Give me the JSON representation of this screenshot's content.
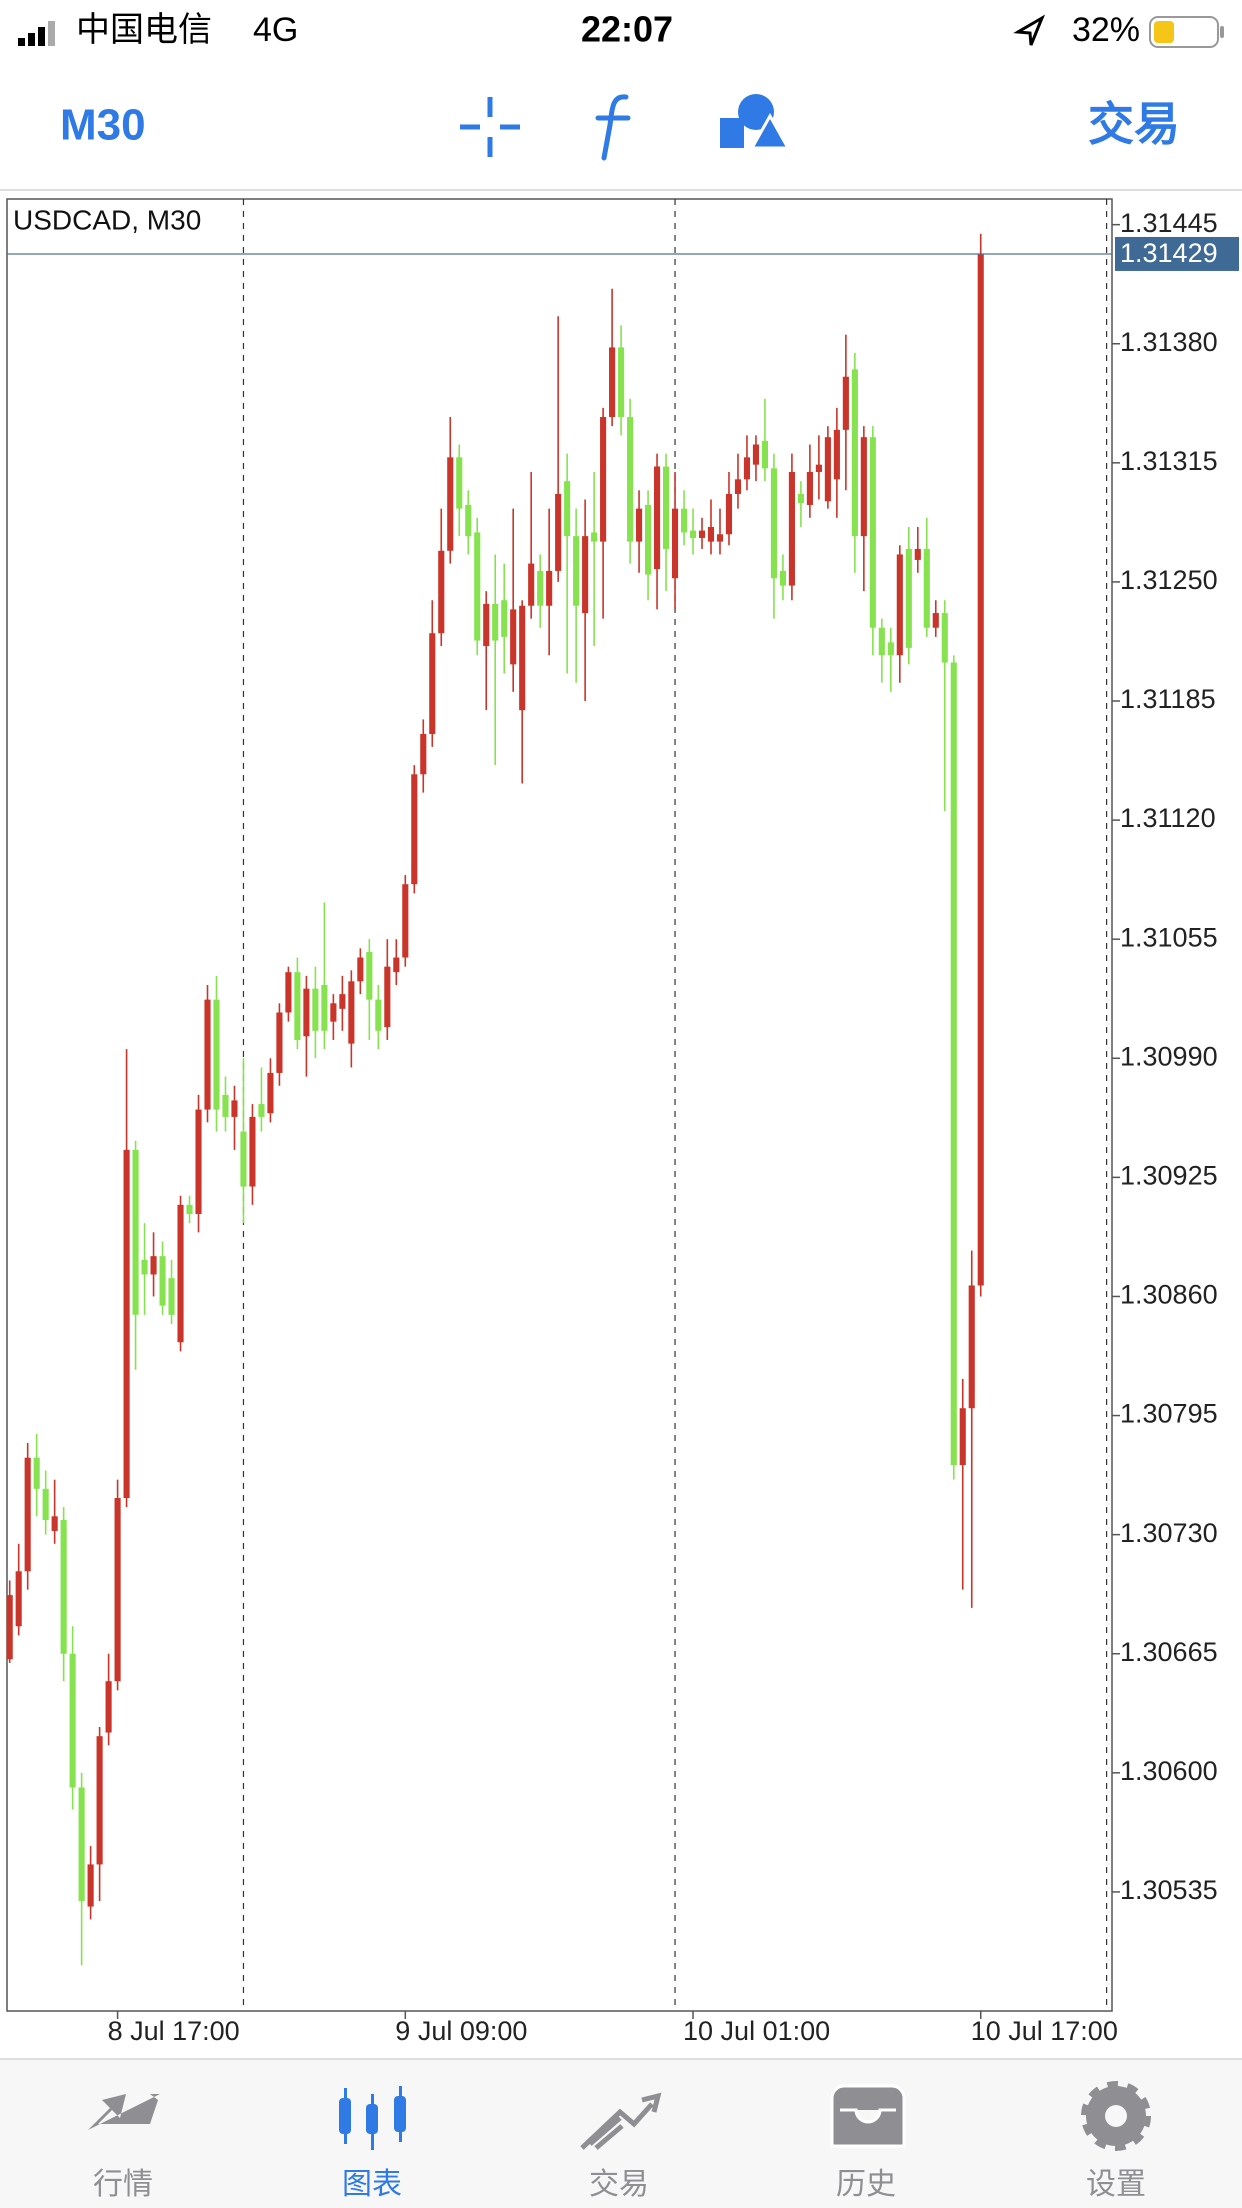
{
  "status_bar": {
    "carrier": "中国电信",
    "network": "4G",
    "time": "22:07",
    "battery": "32%"
  },
  "toolbar": {
    "timeframe": "M30",
    "trade": "交易"
  },
  "chart_data": {
    "type": "candlestick",
    "title": "USDCAD, M30",
    "up_color": "#c9352a",
    "down_color": "#86e34f",
    "open": [
      1.30662,
      1.3068,
      1.3071,
      1.30772,
      1.30755,
      1.30732,
      1.30738,
      1.30665,
      1.30592,
      1.30527,
      1.3055,
      1.30622,
      1.3065,
      1.3075,
      1.3094,
      1.3088,
      1.30872,
      1.30882,
      1.3087,
      1.30835,
      1.3091,
      1.30905,
      1.30962,
      1.31022,
      1.3097,
      1.30958,
      1.3095,
      1.3092,
      1.30965,
      1.3096,
      1.30982,
      1.31015,
      1.31037,
      1.31002,
      1.31028,
      1.3103,
      1.3101,
      1.31017,
      1.30998,
      1.31032,
      1.31048,
      1.31022,
      1.31007,
      1.31037,
      1.31045,
      1.31085,
      1.31145,
      1.31167,
      1.31222,
      1.31267,
      1.31318,
      1.31292,
      1.31277,
      1.31215,
      1.31238,
      1.3124,
      1.31205,
      1.3118,
      1.31237,
      1.31256,
      1.31237,
      1.31256,
      1.31305,
      1.31275,
      1.31233,
      1.31277,
      1.31272,
      1.3134,
      1.31378,
      1.3134,
      1.31272,
      1.31292,
      1.31257,
      1.31313,
      1.31252,
      1.3129,
      1.31278,
      1.31274,
      1.31272,
      1.31272,
      1.31276,
      1.31298,
      1.31306,
      1.31314,
      1.31327,
      1.31312,
      1.31256,
      1.31248,
      1.31298,
      1.31292,
      1.3131,
      1.31294,
      1.31306,
      1.31333,
      1.31366,
      1.31275,
      1.31329,
      1.31225,
      1.31217,
      1.3121,
      1.31268,
      1.31262,
      1.31268,
      1.31225,
      1.31233,
      1.31206,
      1.30768,
      1.30799,
      1.30866
    ],
    "high": [
      1.30705,
      1.30725,
      1.3078,
      1.30785,
      1.30765,
      1.3076,
      1.30745,
      1.3068,
      1.306,
      1.3056,
      1.30625,
      1.30665,
      1.3076,
      1.30995,
      1.30945,
      1.309,
      1.30895,
      1.3089,
      1.3088,
      1.30915,
      1.30915,
      1.3097,
      1.3103,
      1.31035,
      1.3098,
      1.30975,
      1.3099,
      1.30965,
      1.30985,
      1.3099,
      1.3102,
      1.3104,
      1.31045,
      1.31035,
      1.3104,
      1.31075,
      1.31025,
      1.31035,
      1.31038,
      1.3105,
      1.31055,
      1.3103,
      1.31055,
      1.31055,
      1.3109,
      1.3115,
      1.31175,
      1.3124,
      1.3129,
      1.3134,
      1.31325,
      1.313,
      1.31285,
      1.31245,
      1.31265,
      1.3126,
      1.3129,
      1.3124,
      1.3131,
      1.31265,
      1.3129,
      1.31395,
      1.3132,
      1.3129,
      1.31295,
      1.3131,
      1.31345,
      1.3141,
      1.3139,
      1.3135,
      1.313,
      1.313,
      1.3132,
      1.3132,
      1.3131,
      1.313,
      1.3129,
      1.31285,
      1.31295,
      1.3129,
      1.3131,
      1.3132,
      1.3133,
      1.3133,
      1.3135,
      1.3132,
      1.31265,
      1.3132,
      1.31305,
      1.31325,
      1.3133,
      1.31335,
      1.31345,
      1.31385,
      1.31375,
      1.31335,
      1.31335,
      1.3123,
      1.31225,
      1.3127,
      1.3128,
      1.3128,
      1.31285,
      1.3124,
      1.3124,
      1.3121,
      1.30815,
      1.30885,
      1.3144
    ],
    "low": [
      1.3066,
      1.30675,
      1.307,
      1.3074,
      1.3073,
      1.30725,
      1.3065,
      1.3058,
      1.30495,
      1.3052,
      1.3053,
      1.30615,
      1.30645,
      1.30745,
      1.3082,
      1.3085,
      1.3086,
      1.3085,
      1.30845,
      1.3083,
      1.309,
      1.30895,
      1.30955,
      1.3095,
      1.3095,
      1.3094,
      1.309,
      1.3091,
      1.3095,
      1.30955,
      1.30975,
      1.3101,
      1.30995,
      1.3098,
      1.3099,
      1.30995,
      1.31,
      1.31005,
      1.30985,
      1.31025,
      1.31,
      1.30995,
      1.31,
      1.3103,
      1.3104,
      1.3108,
      1.31135,
      1.3116,
      1.31215,
      1.3126,
      1.31275,
      1.31265,
      1.3121,
      1.3118,
      1.3115,
      1.312,
      1.3119,
      1.3114,
      1.3123,
      1.31225,
      1.3121,
      1.3125,
      1.312,
      1.31195,
      1.31185,
      1.31215,
      1.3123,
      1.31335,
      1.3133,
      1.3126,
      1.31255,
      1.3124,
      1.31235,
      1.31245,
      1.31235,
      1.3127,
      1.31265,
      1.31268,
      1.31265,
      1.31265,
      1.3127,
      1.3129,
      1.313,
      1.31305,
      1.31305,
      1.3123,
      1.3124,
      1.3124,
      1.3128,
      1.31285,
      1.31295,
      1.3129,
      1.31285,
      1.313,
      1.31255,
      1.31245,
      1.3121,
      1.31195,
      1.3119,
      1.31195,
      1.31205,
      1.31255,
      1.3122,
      1.3122,
      1.31125,
      1.3076,
      1.307,
      1.3069,
      1.3086
    ],
    "close": [
      1.30697,
      1.3071,
      1.30772,
      1.30755,
      1.30738,
      1.3074,
      1.30665,
      1.30592,
      1.3053,
      1.3055,
      1.3062,
      1.3065,
      1.3075,
      1.3094,
      1.3085,
      1.30872,
      1.30882,
      1.30855,
      1.3085,
      1.3091,
      1.30905,
      1.30962,
      1.31022,
      1.30962,
      1.30958,
      1.30967,
      1.3092,
      1.30958,
      1.30958,
      1.30982,
      1.31015,
      1.31037,
      1.31,
      1.31028,
      1.31005,
      1.31005,
      1.3102,
      1.31025,
      1.31032,
      1.31045,
      1.31022,
      1.31005,
      1.3104,
      1.31045,
      1.31085,
      1.31145,
      1.31167,
      1.31222,
      1.31267,
      1.31318,
      1.3129,
      1.31275,
      1.31218,
      1.31238,
      1.31218,
      1.3122,
      1.31235,
      1.31237,
      1.3126,
      1.31237,
      1.31256,
      1.31298,
      1.31275,
      1.31237,
      1.31275,
      1.31272,
      1.3134,
      1.31378,
      1.3134,
      1.31272,
      1.3129,
      1.31254,
      1.31313,
      1.31268,
      1.3129,
      1.31277,
      1.31274,
      1.31278,
      1.3128,
      1.31276,
      1.31298,
      1.31306,
      1.31318,
      1.31325,
      1.31312,
      1.31252,
      1.31248,
      1.3131,
      1.31293,
      1.3131,
      1.31314,
      1.31329,
      1.31333,
      1.31362,
      1.31275,
      1.31329,
      1.31225,
      1.3121,
      1.3121,
      1.31265,
      1.31214,
      1.31268,
      1.31225,
      1.31233,
      1.31206,
      1.30768,
      1.30799,
      1.30866,
      1.31429
    ],
    "current_price": 1.31429,
    "ylim": [
      1.3047,
      1.31459
    ],
    "yticks": [
      1.31445,
      {
        "value": 1.3138,
        "label": "1.31380"
      },
      1.31315,
      {
        "value": 1.3125,
        "label": "1.31250"
      },
      1.31185,
      {
        "value": 1.3112,
        "label": "1.31120"
      },
      1.31055,
      {
        "value": 1.3099,
        "label": "1.30990"
      },
      1.30925,
      {
        "value": 1.3086,
        "label": "1.30860"
      },
      1.30795,
      {
        "value": 1.3073,
        "label": "1.30730"
      },
      1.30665,
      {
        "value": 1.306,
        "label": "1.30600"
      },
      1.30535
    ],
    "xlim": [
      -0.3,
      122.6
    ],
    "xticks": [
      {
        "value": 12,
        "label": "8 Jul 17:00"
      },
      {
        "value": 44,
        "label": "9 Jul 09:00"
      },
      {
        "value": 76,
        "label": "10 Jul 01:00"
      },
      {
        "value": 108,
        "label": "10 Jul 17:00"
      }
    ],
    "separators": [
      26,
      74,
      122
    ]
  },
  "tab_bar": {
    "items": [
      "行情",
      "图表",
      "交易",
      "历史",
      "设置"
    ],
    "active": 1
  }
}
